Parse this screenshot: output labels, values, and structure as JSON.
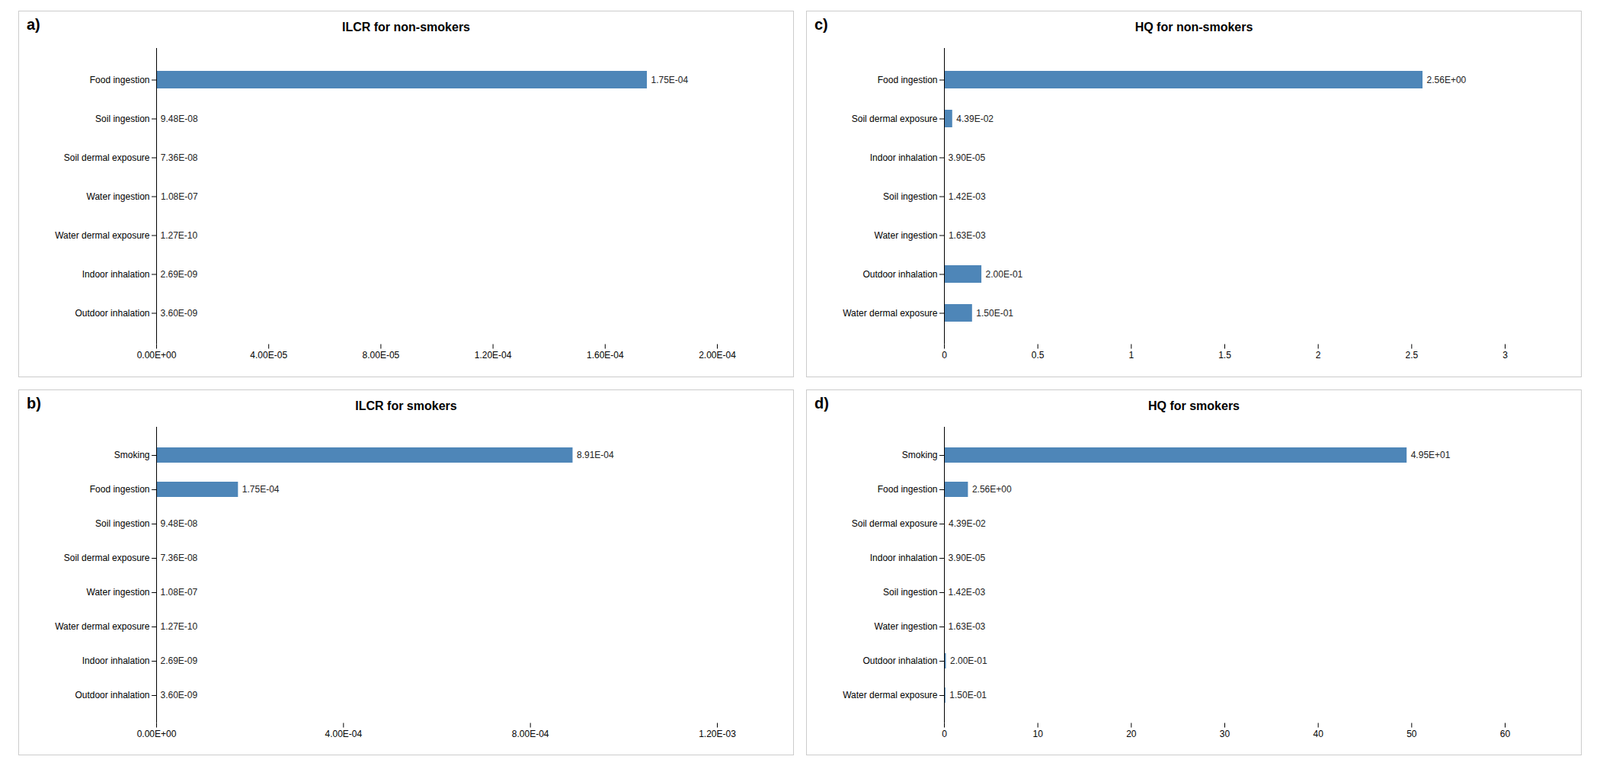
{
  "chart_data": [
    {
      "type": "bar",
      "orientation": "horizontal",
      "title": "ILCR for non-smokers",
      "annotation": "a)",
      "categories": [
        "Food ingestion",
        "Soil ingestion",
        "Soil dermal exposure",
        "Water ingestion",
        "Water dermal exposure",
        "Indoor inhalation",
        "Outdoor inhalation"
      ],
      "values": [
        0.000175,
        9.48e-08,
        7.36e-08,
        1.08e-07,
        1.27e-10,
        2.69e-09,
        3.6e-09
      ],
      "value_labels": [
        "1.75E-04",
        "9.48E-08",
        "7.36E-08",
        "1.08E-07",
        "1.27E-10",
        "2.69E-09",
        "3.60E-09"
      ],
      "data_labels": true,
      "color": "#4e86b8",
      "xlim": [
        0,
        0.0002
      ],
      "xticks": [
        {
          "value": 0,
          "label": "0.00E+00"
        },
        {
          "value": 4e-05,
          "label": "4.00E-05"
        },
        {
          "value": 8e-05,
          "label": "8.00E-05"
        },
        {
          "value": 0.00012,
          "label": "1.20E-04"
        },
        {
          "value": 0.00016,
          "label": "1.60E-04"
        },
        {
          "value": 0.0002,
          "label": "2.00E-04"
        }
      ]
    },
    {
      "type": "bar",
      "orientation": "horizontal",
      "title": "HQ for non-smokers",
      "annotation": "c)",
      "categories": [
        "Food ingestion",
        "Soil dermal exposure",
        "Indoor inhalation",
        "Soil ingestion",
        "Water ingestion",
        "Outdoor inhalation",
        "Water dermal exposure"
      ],
      "values": [
        2.56,
        0.0439,
        3.9e-05,
        0.00142,
        0.00163,
        0.2,
        0.15
      ],
      "value_labels": [
        "2.56E+00",
        "4.39E-02",
        "3.90E-05",
        "1.42E-03",
        "1.63E-03",
        "2.00E-01",
        "1.50E-01"
      ],
      "data_labels": true,
      "color": "#4e86b8",
      "xlim": [
        0,
        3.0
      ],
      "xticks": [
        0,
        0.5,
        1,
        1.5,
        2,
        2.5,
        3
      ]
    },
    {
      "type": "bar",
      "orientation": "horizontal",
      "title": "ILCR for smokers",
      "annotation": "b)",
      "categories": [
        "Smoking",
        "Food ingestion",
        "Soil ingestion",
        "Soil dermal exposure",
        "Water ingestion",
        "Water dermal exposure",
        "Indoor inhalation",
        "Outdoor inhalation"
      ],
      "values": [
        0.000891,
        0.000175,
        9.48e-08,
        7.36e-08,
        1.08e-07,
        1.27e-10,
        2.69e-09,
        3.6e-09
      ],
      "value_labels": [
        "8.91E-04",
        "1.75E-04",
        "9.48E-08",
        "7.36E-08",
        "1.08E-07",
        "1.27E-10",
        "2.69E-09",
        "3.60E-09"
      ],
      "data_labels": true,
      "color": "#4e86b8",
      "xlim": [
        0,
        0.0012
      ],
      "xticks": [
        {
          "value": 0,
          "label": "0.00E+00"
        },
        {
          "value": 0.0004,
          "label": "4.00E-04"
        },
        {
          "value": 0.0008,
          "label": "8.00E-04"
        },
        {
          "value": 0.0012,
          "label": "1.20E-03"
        }
      ]
    },
    {
      "type": "bar",
      "orientation": "horizontal",
      "title": "HQ for smokers",
      "annotation": "d)",
      "categories": [
        "Smoking",
        "Food ingestion",
        "Soil dermal exposure",
        "Indoor inhalation",
        "Soil ingestion",
        "Water ingestion",
        "Outdoor inhalation",
        "Water dermal exposure"
      ],
      "values": [
        49.5,
        2.56,
        0.0439,
        3.9e-05,
        0.00142,
        0.00163,
        0.2,
        0.15
      ],
      "value_labels": [
        "4.95E+01",
        "2.56E+00",
        "4.39E-02",
        "3.90E-05",
        "1.42E-03",
        "1.63E-03",
        "2.00E-01",
        "1.50E-01"
      ],
      "data_labels": true,
      "color": "#4e86b8",
      "xlim": [
        0,
        60
      ],
      "xticks": [
        0,
        10,
        20,
        30,
        40,
        50,
        60
      ]
    }
  ]
}
